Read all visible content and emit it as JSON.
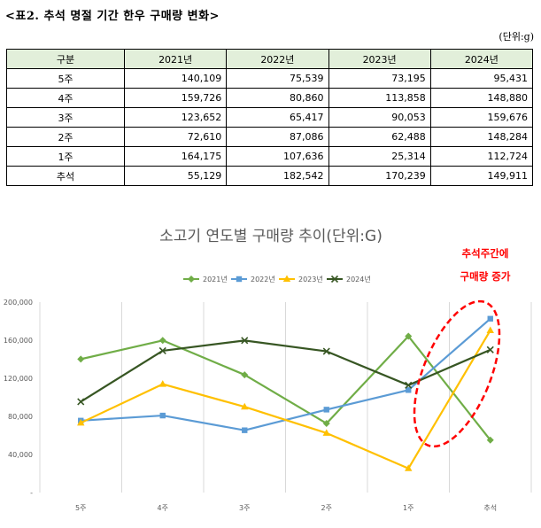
{
  "table_title": "<표2. 추석 명절 기간 한우 구매량 변화>",
  "unit_label": "(단위:g)",
  "table": {
    "headers": [
      "구분",
      "2021년",
      "2022년",
      "2023년",
      "2024년"
    ],
    "rows": [
      [
        "5주",
        "140,109",
        "75,539",
        "73,195",
        "95,431"
      ],
      [
        "4주",
        "159,726",
        "80,860",
        "113,858",
        "148,880"
      ],
      [
        "3주",
        "123,652",
        "65,417",
        "90,053",
        "159,676"
      ],
      [
        "2주",
        "72,610",
        "87,086",
        "62,488",
        "148,284"
      ],
      [
        "1주",
        "164,175",
        "107,636",
        "25,314",
        "112,724"
      ],
      [
        "추석",
        "55,129",
        "182,542",
        "170,239",
        "149,911"
      ]
    ]
  },
  "chart_data": {
    "type": "line",
    "title": "소고기 연도별 구매량 추이(단위:G)",
    "categories": [
      "5주",
      "4주",
      "3주",
      "2주",
      "1주",
      "추석"
    ],
    "ylim": [
      0,
      200000
    ],
    "yticks": [
      0,
      40000,
      80000,
      120000,
      160000,
      200000
    ],
    "ytick_labels": [
      "-",
      "40,000",
      "80,000",
      "120,000",
      "160,000",
      "200,000"
    ],
    "grid": "vertical",
    "legend_position": "top",
    "series": [
      {
        "name": "2021년",
        "color": "#70ad47",
        "marker": "diamond",
        "values": [
          140109,
          159726,
          123652,
          72610,
          164175,
          55129
        ]
      },
      {
        "name": "2022년",
        "color": "#5b9bd5",
        "marker": "square",
        "values": [
          75539,
          80860,
          65417,
          87086,
          107636,
          182542
        ]
      },
      {
        "name": "2023년",
        "color": "#ffc000",
        "marker": "triangle",
        "values": [
          73195,
          113858,
          90053,
          62488,
          25314,
          170239
        ]
      },
      {
        "name": "2024년",
        "color": "#375623",
        "marker": "x",
        "values": [
          95431,
          148880,
          159676,
          148284,
          112724,
          149911
        ]
      }
    ],
    "annotation": {
      "lines": [
        "추석주간에",
        "구매량 증가"
      ],
      "color": "#ff0000"
    }
  }
}
